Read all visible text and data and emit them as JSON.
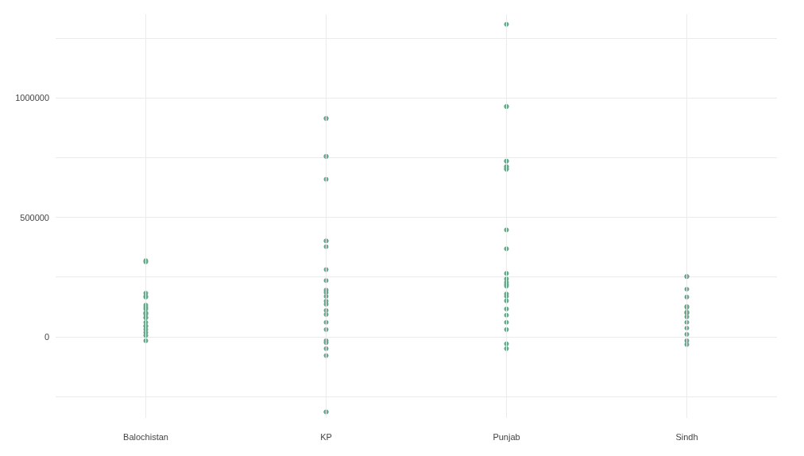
{
  "chart_data": {
    "type": "scatter",
    "categories": [
      "Balochistan",
      "KP",
      "Punjab",
      "Sindh"
    ],
    "ylim": [
      -340000,
      1350000
    ],
    "yticks": [
      {
        "value": -250000,
        "label": null
      },
      0,
      {
        "value": 250000,
        "label": null
      },
      500000,
      {
        "value": 750000,
        "label": null
      },
      1000000,
      {
        "value": 1250000,
        "label": null
      }
    ],
    "grid": true,
    "marker": "circle",
    "series": [
      {
        "color": "#6aa88d",
        "x": [
          "Balochistan",
          "Balochistan",
          "Balochistan",
          "Balochistan",
          "Balochistan",
          "Balochistan",
          "Balochistan",
          "Balochistan",
          "Balochistan",
          "Balochistan",
          "Balochistan",
          "Balochistan",
          "Balochistan",
          "Balochistan",
          "Balochistan",
          "Balochistan",
          "Balochistan",
          "Balochistan",
          "Balochistan",
          "Balochistan",
          "KP",
          "KP",
          "KP",
          "KP",
          "KP",
          "KP",
          "KP",
          "KP",
          "KP",
          "KP",
          "KP",
          "KP",
          "KP",
          "KP",
          "KP",
          "KP",
          "KP",
          "KP",
          "KP",
          "KP",
          "KP",
          "KP",
          "KP",
          "KP",
          "KP",
          "Punjab",
          "Punjab",
          "Punjab",
          "Punjab",
          "Punjab",
          "Punjab",
          "Punjab",
          "Punjab",
          "Punjab",
          "Punjab",
          "Punjab",
          "Punjab",
          "Punjab",
          "Punjab",
          "Punjab",
          "Punjab",
          "Punjab",
          "Punjab",
          "Punjab",
          "Punjab",
          "Punjab",
          "Punjab",
          "Punjab",
          "Punjab",
          "Punjab",
          "Sindh",
          "Sindh",
          "Sindh",
          "Sindh",
          "Sindh",
          "Sindh",
          "Sindh",
          "Sindh",
          "Sindh",
          "Sindh",
          "Sindh",
          "Sindh",
          "Sindh",
          "Sindh",
          "Sindh"
        ],
        "values": [
          318000,
          182000,
          166000,
          132000,
          116000,
          100000,
          93000,
          80000,
          60000,
          43000,
          30000,
          17000,
          5000,
          -17000,
          313000,
          169000,
          123000,
          99000,
          79000,
          45000,
          914000,
          755000,
          659000,
          401000,
          377000,
          281000,
          235000,
          195000,
          185000,
          169000,
          149000,
          136000,
          110000,
          93000,
          60000,
          30000,
          -17000,
          -25000,
          -50000,
          -79000,
          -315000,
          914000,
          755000,
          401000,
          -315000,
          1308000,
          964000,
          735000,
          712000,
          702000,
          447000,
          368000,
          265000,
          242000,
          228000,
          219000,
          212000,
          179000,
          169000,
          150000,
          116000,
          90000,
          60000,
          30000,
          -30000,
          -50000,
          964000,
          735000,
          702000,
          712000,
          252000,
          199000,
          166000,
          126000,
          123000,
          103000,
          100000,
          99000,
          83000,
          60000,
          36000,
          10000,
          -17000,
          -33000,
          252000
        ]
      }
    ]
  }
}
